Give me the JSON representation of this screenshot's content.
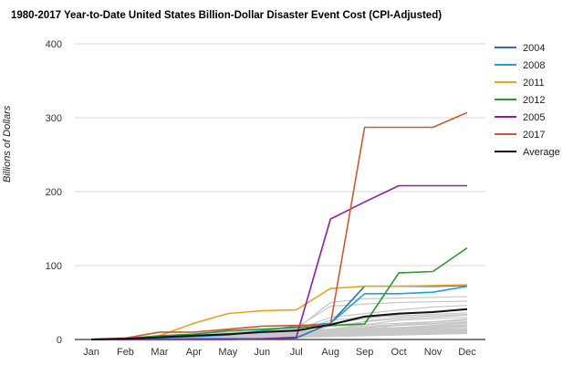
{
  "chart_data": {
    "type": "line",
    "title": "1980-2017 Year-to-Date United States Billion-Dollar Disaster Event Cost (CPI-Adjusted)",
    "ylabel": "Billions of Dollars",
    "xlabel": "",
    "ylim": [
      0,
      400
    ],
    "yticks": [
      0,
      100,
      200,
      300,
      400
    ],
    "categories": [
      "Jan",
      "Feb",
      "Mar",
      "Apr",
      "May",
      "Jun",
      "Jul",
      "Aug",
      "Sep",
      "Oct",
      "Nov",
      "Dec"
    ],
    "legend_position": "right",
    "series": [
      {
        "name": "2004",
        "color": "#2e6fb7",
        "values": [
          0,
          0,
          0,
          1,
          1,
          1,
          2,
          22,
          72,
          72,
          72,
          73
        ]
      },
      {
        "name": "2008",
        "color": "#1aa3dc",
        "values": [
          0,
          1,
          2,
          4,
          6,
          12,
          18,
          22,
          62,
          62,
          64,
          72
        ]
      },
      {
        "name": "2011",
        "color": "#f0a020",
        "values": [
          0,
          1,
          5,
          22,
          35,
          39,
          40,
          69,
          72,
          72,
          73,
          74
        ]
      },
      {
        "name": "2012",
        "color": "#2a9a2a",
        "values": [
          0,
          1,
          5,
          7,
          12,
          14,
          16,
          19,
          21,
          90,
          92,
          124
        ]
      },
      {
        "name": "2005",
        "color": "#8e1ea8",
        "values": [
          0,
          0,
          0,
          0,
          0,
          1,
          3,
          163,
          186,
          208,
          208,
          208
        ]
      },
      {
        "name": "2017",
        "color": "#cf5a2e",
        "values": [
          0,
          2,
          10,
          10,
          14,
          18,
          19,
          20,
          287,
          287,
          287,
          307
        ]
      },
      {
        "name": "Average",
        "color": "#111111",
        "values": [
          0,
          1,
          3,
          5,
          7,
          10,
          12,
          20,
          31,
          35,
          37,
          41
        ]
      }
    ],
    "background_series_color": "#c8c8c8",
    "background_series": [
      [
        0,
        0,
        1,
        2,
        3,
        5,
        6,
        8,
        10,
        12,
        13,
        14
      ],
      [
        0,
        1,
        2,
        4,
        6,
        8,
        9,
        12,
        15,
        16,
        18,
        19
      ],
      [
        0,
        0,
        0,
        1,
        2,
        3,
        4,
        6,
        8,
        9,
        10,
        11
      ],
      [
        1,
        2,
        3,
        5,
        8,
        10,
        12,
        14,
        18,
        20,
        22,
        24
      ],
      [
        0,
        1,
        1,
        2,
        4,
        6,
        8,
        10,
        12,
        14,
        16,
        18
      ],
      [
        0,
        0,
        2,
        3,
        5,
        7,
        9,
        12,
        16,
        20,
        24,
        28
      ],
      [
        0,
        1,
        3,
        5,
        7,
        9,
        11,
        14,
        20,
        26,
        28,
        30
      ],
      [
        1,
        2,
        4,
        6,
        9,
        12,
        14,
        18,
        24,
        28,
        30,
        33
      ],
      [
        0,
        1,
        2,
        4,
        7,
        10,
        14,
        50,
        55,
        56,
        57,
        58
      ],
      [
        0,
        2,
        5,
        8,
        10,
        14,
        16,
        45,
        48,
        50,
        51,
        52
      ],
      [
        0,
        1,
        3,
        6,
        9,
        11,
        13,
        30,
        35,
        40,
        44,
        46
      ],
      [
        0,
        0,
        1,
        3,
        6,
        9,
        12,
        22,
        28,
        34,
        38,
        40
      ],
      [
        0,
        1,
        2,
        3,
        4,
        6,
        7,
        9,
        11,
        13,
        15,
        17
      ],
      [
        0,
        1,
        2,
        4,
        5,
        7,
        8,
        10,
        12,
        14,
        16,
        20
      ],
      [
        0,
        0,
        1,
        2,
        3,
        4,
        5,
        7,
        9,
        22,
        24,
        26
      ],
      [
        0,
        1,
        1,
        2,
        3,
        5,
        6,
        8,
        25,
        30,
        32,
        34
      ],
      [
        0,
        0,
        1,
        1,
        2,
        3,
        4,
        5,
        6,
        7,
        8,
        9
      ],
      [
        0,
        1,
        2,
        3,
        5,
        6,
        8,
        10,
        13,
        16,
        19,
        22
      ],
      [
        0,
        0,
        1,
        2,
        3,
        4,
        6,
        18,
        20,
        22,
        24,
        26
      ],
      [
        1,
        2,
        3,
        5,
        7,
        9,
        11,
        13,
        16,
        19,
        21,
        23
      ],
      [
        0,
        1,
        3,
        5,
        7,
        9,
        10,
        12,
        14,
        16,
        18,
        20
      ],
      [
        0,
        0,
        0,
        1,
        1,
        2,
        3,
        4,
        5,
        6,
        7,
        8
      ],
      [
        0,
        1,
        2,
        3,
        4,
        5,
        6,
        7,
        9,
        11,
        12,
        13
      ],
      [
        0,
        0,
        1,
        3,
        5,
        8,
        10,
        26,
        30,
        32,
        34,
        36
      ],
      [
        0,
        1,
        2,
        4,
        6,
        8,
        10,
        12,
        14,
        16,
        17,
        18
      ],
      [
        0,
        0,
        1,
        2,
        4,
        6,
        7,
        9,
        10,
        11,
        12,
        13
      ],
      [
        0,
        1,
        2,
        3,
        5,
        7,
        9,
        11,
        13,
        15,
        17,
        19
      ],
      [
        0,
        0,
        1,
        1,
        2,
        4,
        5,
        6,
        7,
        8,
        9,
        10
      ],
      [
        0,
        1,
        1,
        2,
        3,
        4,
        5,
        6,
        8,
        10,
        11,
        12
      ],
      [
        0,
        0,
        1,
        2,
        3,
        5,
        6,
        7,
        8,
        9,
        10,
        11
      ],
      [
        0,
        1,
        2,
        4,
        6,
        8,
        9,
        10,
        12,
        13,
        14,
        15
      ]
    ]
  }
}
